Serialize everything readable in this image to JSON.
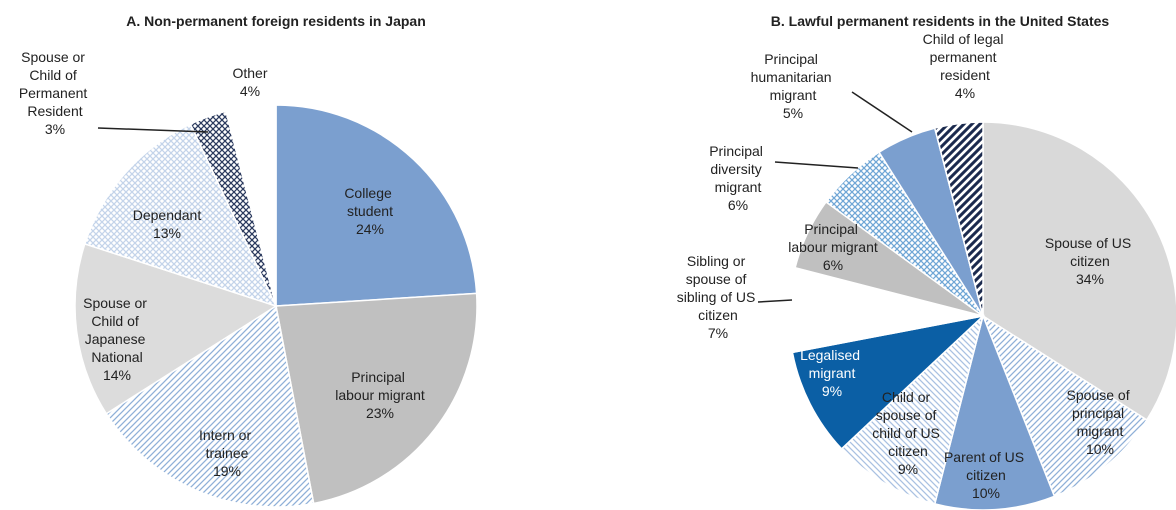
{
  "chart_data": [
    {
      "type": "pie",
      "title": "A. Non-permanent foreign residents in Japan",
      "categories": [
        "College student",
        "Principal labour migrant",
        "Intern or trainee",
        "Spouse or Child of Japanese National",
        "Dependant",
        "Spouse or Child of Permanent Resident",
        "Other"
      ],
      "values": [
        24,
        23,
        19,
        14,
        13,
        3,
        4
      ],
      "value_labels": [
        "24%",
        "23%",
        "19%",
        "14%",
        "13%",
        "3%",
        "4%"
      ],
      "colors": [
        "#7b9fcf",
        "#c0c0c0",
        "#8fb0d8",
        "#dcdcdc",
        "#c4d4ea",
        "#2b3a5e",
        "#ffffff"
      ],
      "patterns": [
        "solid",
        "solid",
        "diagonal",
        "solid",
        "crosshatch",
        "crosshatch",
        "solid"
      ]
    },
    {
      "type": "pie",
      "title": "B. Lawful permanent residents in the United States",
      "categories": [
        "Spouse of US citizen",
        "Spouse of principal migrant",
        "Parent of US citizen",
        "Child or spouse of child of US citizen",
        "Legalised migrant",
        "Sibling or spouse of sibling of US citizen",
        "Principal labour migrant",
        "Principal diversity migrant",
        "Principal humanitarian migrant",
        "Child of legal permanent resident"
      ],
      "values": [
        34,
        10,
        10,
        9,
        9,
        7,
        6,
        6,
        5,
        4
      ],
      "value_labels": [
        "34%",
        "10%",
        "10%",
        "9%",
        "9%",
        "7%",
        "6%",
        "6%",
        "5%",
        "4%"
      ],
      "colors": [
        "#d9d9d9",
        "#8fb0d8",
        "#7b9fcf",
        "#a9c1e2",
        "#0b5fa5",
        "#ffffff",
        "#c0c0c0",
        "#6fa6d6",
        "#7b9fcf",
        "#1b2a4e"
      ],
      "patterns": [
        "solid",
        "diagonal",
        "solid",
        "diagonal-r",
        "solid",
        "solid",
        "solid",
        "crosshatch",
        "solid",
        "stripes"
      ]
    }
  ]
}
